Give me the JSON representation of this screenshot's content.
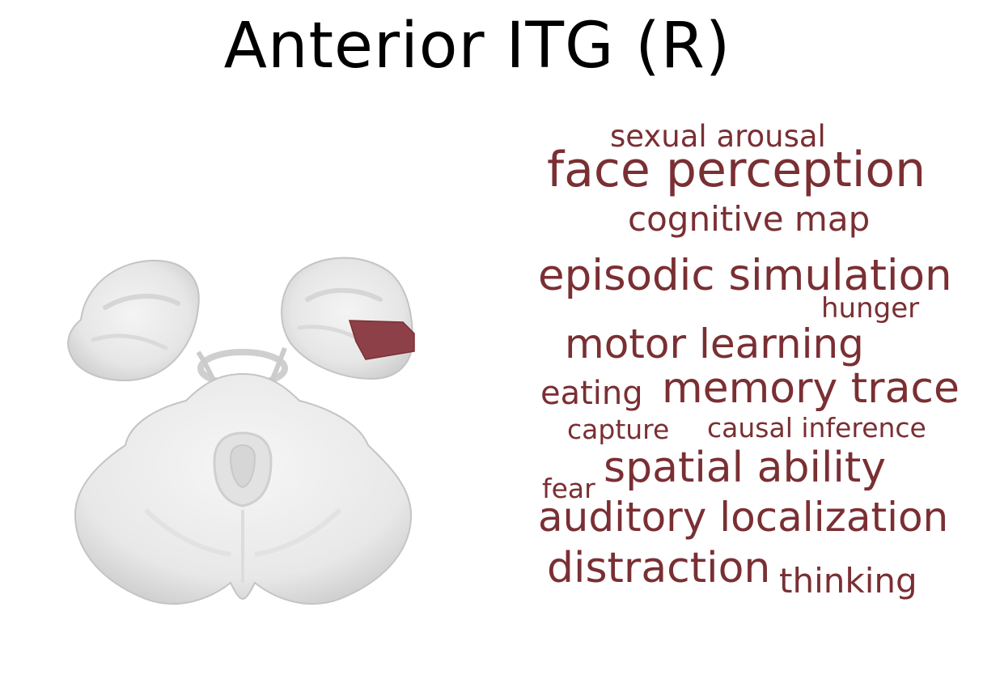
{
  "title": "Anterior ITG (R)",
  "colors": {
    "word": "#7a2f33",
    "region": "#8e4049",
    "brain_fill": "#ececec",
    "brain_shade": "#d8d8d8",
    "brain_edge": "#bdbdbd"
  },
  "brain_image": {
    "highlight_region": "Anterior ITG (R)"
  },
  "word_cloud": {
    "words": [
      {
        "text": "sexual arousal"
      },
      {
        "text": "face perception"
      },
      {
        "text": "cognitive map"
      },
      {
        "text": "episodic simulation"
      },
      {
        "text": "hunger"
      },
      {
        "text": "motor learning"
      },
      {
        "text": "eating"
      },
      {
        "text": "memory trace"
      },
      {
        "text": "capture"
      },
      {
        "text": "causal inference"
      },
      {
        "text": "fear"
      },
      {
        "text": "spatial ability"
      },
      {
        "text": "auditory localization"
      },
      {
        "text": "distraction"
      },
      {
        "text": "thinking"
      }
    ]
  }
}
